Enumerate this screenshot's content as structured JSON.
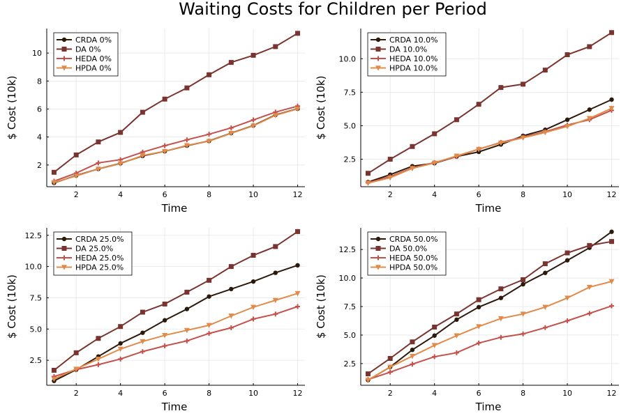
{
  "title": "Waiting Costs for Children per Period",
  "colors": {
    "CRDA": "#2b1a0c",
    "DA": "#7a3430",
    "HEDA": "#c5504a",
    "HPDA": "#e08b4a"
  },
  "chart_data": [
    {
      "type": "line",
      "xlabel": "Time",
      "ylabel": "$ Cost (10k)",
      "xlim": [
        0.67,
        12.33
      ],
      "ylim": [
        0.45,
        11.75
      ],
      "xticks": [
        2,
        4,
        6,
        8,
        10,
        12
      ],
      "yticks": [
        2,
        4,
        6,
        8,
        10
      ],
      "ytick_labels": [
        "2",
        "4",
        "6",
        "8",
        "10"
      ],
      "legend": "top-left",
      "x": [
        1,
        2,
        3,
        4,
        5,
        6,
        7,
        8,
        9,
        10,
        11,
        12
      ],
      "series": [
        {
          "key": "CRDA",
          "name": "CRDA 0%",
          "marker": "circle",
          "values": [
            0.72,
            1.25,
            1.72,
            2.12,
            2.65,
            2.98,
            3.38,
            3.72,
            4.28,
            4.82,
            5.58,
            6.02
          ]
        },
        {
          "key": "DA",
          "name": "DA 0%",
          "marker": "square",
          "values": [
            1.48,
            2.72,
            3.65,
            4.33,
            5.77,
            6.71,
            7.51,
            8.45,
            9.33,
            9.84,
            10.46,
            11.41
          ]
        },
        {
          "key": "HEDA",
          "name": "HEDA 0%",
          "marker": "cross",
          "values": [
            0.85,
            1.42,
            2.15,
            2.38,
            2.92,
            3.38,
            3.8,
            4.2,
            4.65,
            5.22,
            5.78,
            6.21
          ]
        },
        {
          "key": "HPDA",
          "name": "HPDA 0%",
          "marker": "triangle",
          "values": [
            0.75,
            1.22,
            1.72,
            2.1,
            2.68,
            2.98,
            3.4,
            3.7,
            4.27,
            4.8,
            5.55,
            6.01
          ]
        }
      ]
    },
    {
      "type": "line",
      "xlabel": "Time",
      "ylabel": "$ Cost (10k)",
      "xlim": [
        0.67,
        12.33
      ],
      "ylim": [
        0.45,
        12.25
      ],
      "xticks": [
        2,
        4,
        6,
        8,
        10,
        12
      ],
      "yticks": [
        2.5,
        5.0,
        7.5,
        10.0
      ],
      "ytick_labels": [
        "2.5",
        "5.0",
        "7.5",
        "10.0"
      ],
      "legend": "top-left",
      "x": [
        1,
        2,
        3,
        4,
        5,
        6,
        7,
        8,
        9,
        10,
        11,
        12
      ],
      "series": [
        {
          "key": "CRDA",
          "name": "CRDA 10.0%",
          "marker": "circle",
          "values": [
            0.8,
            1.35,
            1.98,
            2.2,
            2.7,
            3.05,
            3.6,
            4.25,
            4.7,
            5.45,
            6.2,
            6.95
          ]
        },
        {
          "key": "DA",
          "name": "DA 10.0%",
          "marker": "square",
          "values": [
            1.45,
            2.5,
            3.45,
            4.4,
            5.45,
            6.6,
            7.85,
            8.1,
            9.15,
            10.3,
            10.9,
            11.95
          ]
        },
        {
          "key": "HEDA",
          "name": "HEDA 10.0%",
          "marker": "cross",
          "values": [
            0.75,
            1.2,
            1.85,
            2.25,
            2.7,
            3.25,
            3.75,
            4.15,
            4.55,
            5.05,
            5.45,
            6.15
          ]
        },
        {
          "key": "HPDA",
          "name": "HPDA 10.0%",
          "marker": "triangle",
          "values": [
            0.72,
            1.12,
            1.82,
            2.22,
            2.75,
            3.25,
            3.72,
            4.1,
            4.5,
            4.95,
            5.55,
            6.3
          ]
        }
      ]
    },
    {
      "type": "line",
      "xlabel": "Time",
      "ylabel": "$ Cost (10k)",
      "xlim": [
        0.67,
        12.33
      ],
      "ylim": [
        0.5,
        13.1
      ],
      "xticks": [
        2,
        4,
        6,
        8,
        10,
        12
      ],
      "yticks": [
        2.5,
        5.0,
        7.5,
        10.0,
        12.5
      ],
      "ytick_labels": [
        "2.5",
        "5.0",
        "7.5",
        "10.0",
        "12.5"
      ],
      "legend": "top-left",
      "x": [
        1,
        2,
        3,
        4,
        5,
        6,
        7,
        8,
        9,
        10,
        11,
        12
      ],
      "series": [
        {
          "key": "CRDA",
          "name": "CRDA 25.0%",
          "marker": "circle",
          "values": [
            0.85,
            1.75,
            2.8,
            3.85,
            4.7,
            5.7,
            6.6,
            7.6,
            8.2,
            8.8,
            9.5,
            10.1
          ]
        },
        {
          "key": "DA",
          "name": "DA 25.0%",
          "marker": "square",
          "values": [
            1.7,
            3.1,
            4.25,
            5.2,
            6.35,
            7.0,
            7.95,
            8.9,
            10.0,
            10.9,
            11.6,
            12.8
          ]
        },
        {
          "key": "HEDA",
          "name": "HEDA 25.0%",
          "marker": "cross",
          "values": [
            1.2,
            1.75,
            2.15,
            2.6,
            3.2,
            3.65,
            4.05,
            4.65,
            5.1,
            5.8,
            6.2,
            6.8
          ]
        },
        {
          "key": "HPDA",
          "name": "HPDA 25.0%",
          "marker": "triangle",
          "values": [
            1.0,
            1.8,
            2.6,
            3.4,
            4.0,
            4.5,
            4.9,
            5.3,
            6.05,
            6.75,
            7.3,
            7.85
          ]
        }
      ]
    },
    {
      "type": "line",
      "xlabel": "Time",
      "ylabel": "$ Cost (10k)",
      "xlim": [
        0.67,
        12.33
      ],
      "ylim": [
        0.6,
        14.4
      ],
      "xticks": [
        2,
        4,
        6,
        8,
        10,
        12
      ],
      "yticks": [
        2.5,
        5.0,
        7.5,
        10.0,
        12.5
      ],
      "ytick_labels": [
        "2.5",
        "5.0",
        "7.5",
        "10.0",
        "12.5"
      ],
      "legend": "top-left",
      "x": [
        1,
        2,
        3,
        4,
        5,
        6,
        7,
        8,
        9,
        10,
        11,
        12
      ],
      "series": [
        {
          "key": "CRDA",
          "name": "CRDA 50.0%",
          "marker": "circle",
          "values": [
            1.05,
            2.2,
            3.7,
            4.95,
            6.35,
            7.45,
            8.25,
            9.45,
            10.45,
            11.55,
            12.65,
            14.05
          ]
        },
        {
          "key": "DA",
          "name": "DA 50.0%",
          "marker": "square",
          "values": [
            1.6,
            2.95,
            4.4,
            5.7,
            6.85,
            8.1,
            9.05,
            9.85,
            11.25,
            12.2,
            12.85,
            13.2
          ]
        },
        {
          "key": "HEDA",
          "name": "HEDA 50.0%",
          "marker": "cross",
          "values": [
            1.1,
            1.75,
            2.45,
            3.1,
            3.45,
            4.3,
            4.8,
            5.1,
            5.65,
            6.25,
            6.9,
            7.55
          ]
        },
        {
          "key": "HPDA",
          "name": "HPDA 50.0%",
          "marker": "triangle",
          "values": [
            1.05,
            2.2,
            3.15,
            4.1,
            4.95,
            5.75,
            6.45,
            6.85,
            7.45,
            8.25,
            9.2,
            9.7
          ]
        }
      ]
    }
  ]
}
